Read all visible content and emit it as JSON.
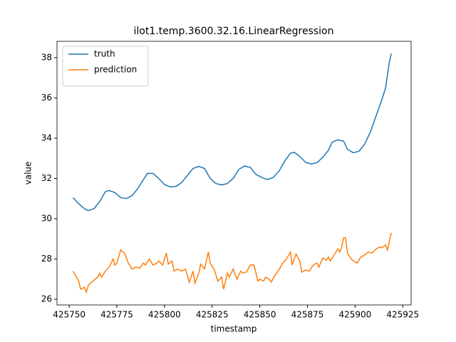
{
  "chart_data": {
    "type": "line",
    "title": "ilot1.temp.3600.32.16.LinearRegression",
    "xlabel": "timestamp",
    "ylabel": "value",
    "xlim": [
      425743.6,
      425929.4
    ],
    "ylim": [
      25.72,
      38.81
    ],
    "xticks": [
      425750,
      425775,
      425800,
      425825,
      425850,
      425875,
      425900,
      425925
    ],
    "yticks": [
      26,
      28,
      30,
      32,
      34,
      36,
      38
    ],
    "legend": "upper left",
    "series": [
      {
        "name": "truth",
        "color": "#1f77b4",
        "x": [
          425752,
          425755,
          425758,
          425760,
          425763,
          425766,
          425769,
          425771,
          425774,
          425777,
          425780,
          425783,
          425786,
          425789,
          425791,
          425794,
          425797,
          425800,
          425803,
          425806,
          425809,
          425812,
          425815,
          425818,
          425821,
          425824,
          425827,
          425830,
          425833,
          425836,
          425839,
          425842,
          425845,
          425848,
          425851,
          425854,
          425857,
          425860,
          425863,
          425866,
          425868,
          425871,
          425874,
          425877,
          425880,
          425883,
          425886,
          425888,
          425891,
          425894,
          425896,
          425899,
          425902,
          425905,
          425908,
          425911,
          425914,
          425916,
          425918,
          425919
        ],
        "values": [
          31.05,
          30.75,
          30.5,
          30.4,
          30.5,
          30.85,
          31.35,
          31.4,
          31.3,
          31.05,
          31.0,
          31.15,
          31.5,
          31.95,
          32.25,
          32.25,
          32.0,
          31.7,
          31.58,
          31.6,
          31.8,
          32.15,
          32.5,
          32.6,
          32.5,
          32.0,
          31.75,
          31.68,
          31.75,
          32.0,
          32.45,
          32.62,
          32.55,
          32.2,
          32.05,
          31.95,
          32.05,
          32.35,
          32.85,
          33.25,
          33.3,
          33.1,
          32.8,
          32.72,
          32.78,
          33.05,
          33.4,
          33.8,
          33.92,
          33.85,
          33.45,
          33.28,
          33.35,
          33.7,
          34.3,
          35.1,
          35.9,
          36.5,
          37.8,
          38.2
        ]
      },
      {
        "name": "prediction",
        "color": "#ff7f0e",
        "x": [
          425752,
          425755,
          425756,
          425758,
          425759,
          425760,
          425763,
          425765,
          425766,
          425767,
          425769,
          425771,
          425773,
          425774,
          425775,
          425777,
          425779,
          425781,
          425783,
          425785,
          425787,
          425789,
          425790,
          425792,
          425794,
          425796,
          425797,
          425799,
          425801,
          425802,
          425804,
          425805,
          425807,
          425809,
          425811,
          425813,
          425815,
          425816,
          425818,
          425819,
          425821,
          425823,
          425824,
          425826,
          425828,
          425830,
          425831,
          425833,
          425834,
          425836,
          425838,
          425840,
          425841,
          425843,
          425845,
          425847,
          425849,
          425850,
          425852,
          425853,
          425855,
          425856,
          425858,
          425860,
          425862,
          425864,
          425866,
          425867,
          425869,
          425871,
          425872,
          425874,
          425876,
          425878,
          425880,
          425881,
          425883,
          425885,
          425886,
          425887,
          425889,
          425891,
          425892,
          425893,
          425894,
          425895,
          425896,
          425898,
          425900,
          425901,
          425903,
          425905,
          425907,
          425909,
          425911,
          425913,
          425914,
          425916,
          425917,
          425918,
          425919
        ],
        "values": [
          27.4,
          26.9,
          26.5,
          26.6,
          26.35,
          26.7,
          26.95,
          27.1,
          27.3,
          27.1,
          27.4,
          27.6,
          28.0,
          27.7,
          27.8,
          28.45,
          28.3,
          27.8,
          27.5,
          27.6,
          27.55,
          27.8,
          27.7,
          28.0,
          27.7,
          27.8,
          27.9,
          27.7,
          28.3,
          27.75,
          27.9,
          27.4,
          27.5,
          27.4,
          27.5,
          26.85,
          27.4,
          26.8,
          27.3,
          27.75,
          27.5,
          28.35,
          27.8,
          27.5,
          26.9,
          27.1,
          26.5,
          27.3,
          27.1,
          27.5,
          27.0,
          27.4,
          27.3,
          27.35,
          27.7,
          27.7,
          26.9,
          27.0,
          26.9,
          27.1,
          27.0,
          26.85,
          27.2,
          27.45,
          27.8,
          28.0,
          28.35,
          27.7,
          28.25,
          27.9,
          27.35,
          27.45,
          27.4,
          27.7,
          27.8,
          27.6,
          28.05,
          27.95,
          28.1,
          27.9,
          28.2,
          28.5,
          28.35,
          28.6,
          29.05,
          29.05,
          28.3,
          28.0,
          27.85,
          27.8,
          28.1,
          28.2,
          28.35,
          28.3,
          28.5,
          28.6,
          28.55,
          28.7,
          28.45,
          28.9,
          29.3
        ]
      }
    ]
  }
}
